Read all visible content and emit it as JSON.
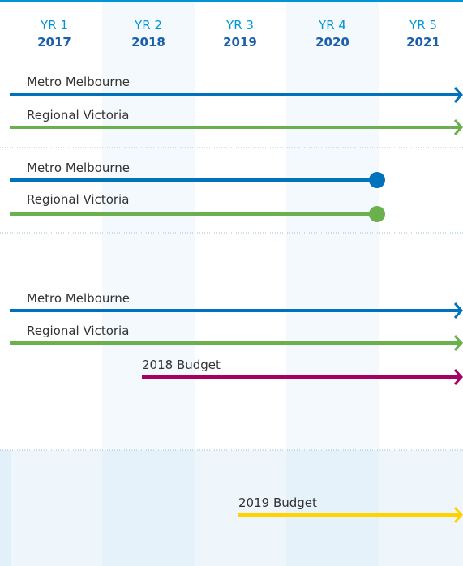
{
  "header": {
    "columns": [
      {
        "label": "YR 1",
        "year": "2017"
      },
      {
        "label": "YR 2",
        "year": "2018"
      },
      {
        "label": "YR 3",
        "year": "2019"
      },
      {
        "label": "YR 4",
        "year": "2020"
      },
      {
        "label": "YR 5",
        "year": "2021"
      }
    ]
  },
  "sections": [
    {
      "rows": [
        {
          "label": "Metro Melbourne"
        },
        {
          "label": "Regional Victoria"
        }
      ]
    },
    {
      "rows": [
        {
          "label": "Metro Melbourne"
        },
        {
          "label": "Regional Victoria"
        }
      ]
    },
    {
      "rows": [
        {
          "label": "Metro Melbourne"
        },
        {
          "label": "Regional Victoria"
        },
        {
          "label": "2018 Budget"
        }
      ]
    },
    {
      "rows": [
        {
          "label": "2019 Budget"
        }
      ]
    }
  ]
}
